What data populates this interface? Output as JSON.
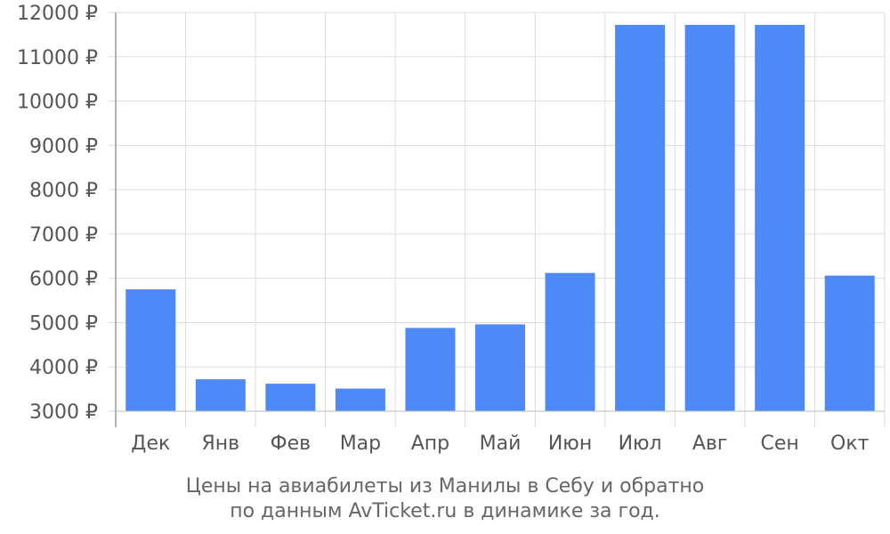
{
  "chart_data": {
    "type": "bar",
    "categories": [
      "Дек",
      "Янв",
      "Фев",
      "Мар",
      "Апр",
      "Май",
      "Июн",
      "Июл",
      "Авг",
      "Сен",
      "Окт"
    ],
    "values": [
      5750,
      3720,
      3620,
      3510,
      4880,
      4960,
      6120,
      11720,
      11720,
      11720,
      6060
    ],
    "ylim": [
      3000,
      12000
    ],
    "y_ticks": [
      3000,
      4000,
      5000,
      6000,
      7000,
      8000,
      9000,
      10000,
      11000,
      12000
    ],
    "y_tick_suffix": " ₽",
    "bar_color": "#4e89f8",
    "grid": true,
    "title": "Цены на авиабилеты из Манилы в Себу и обратно",
    "subtitle": "по данным AvTicket.ru в динамике за год."
  }
}
